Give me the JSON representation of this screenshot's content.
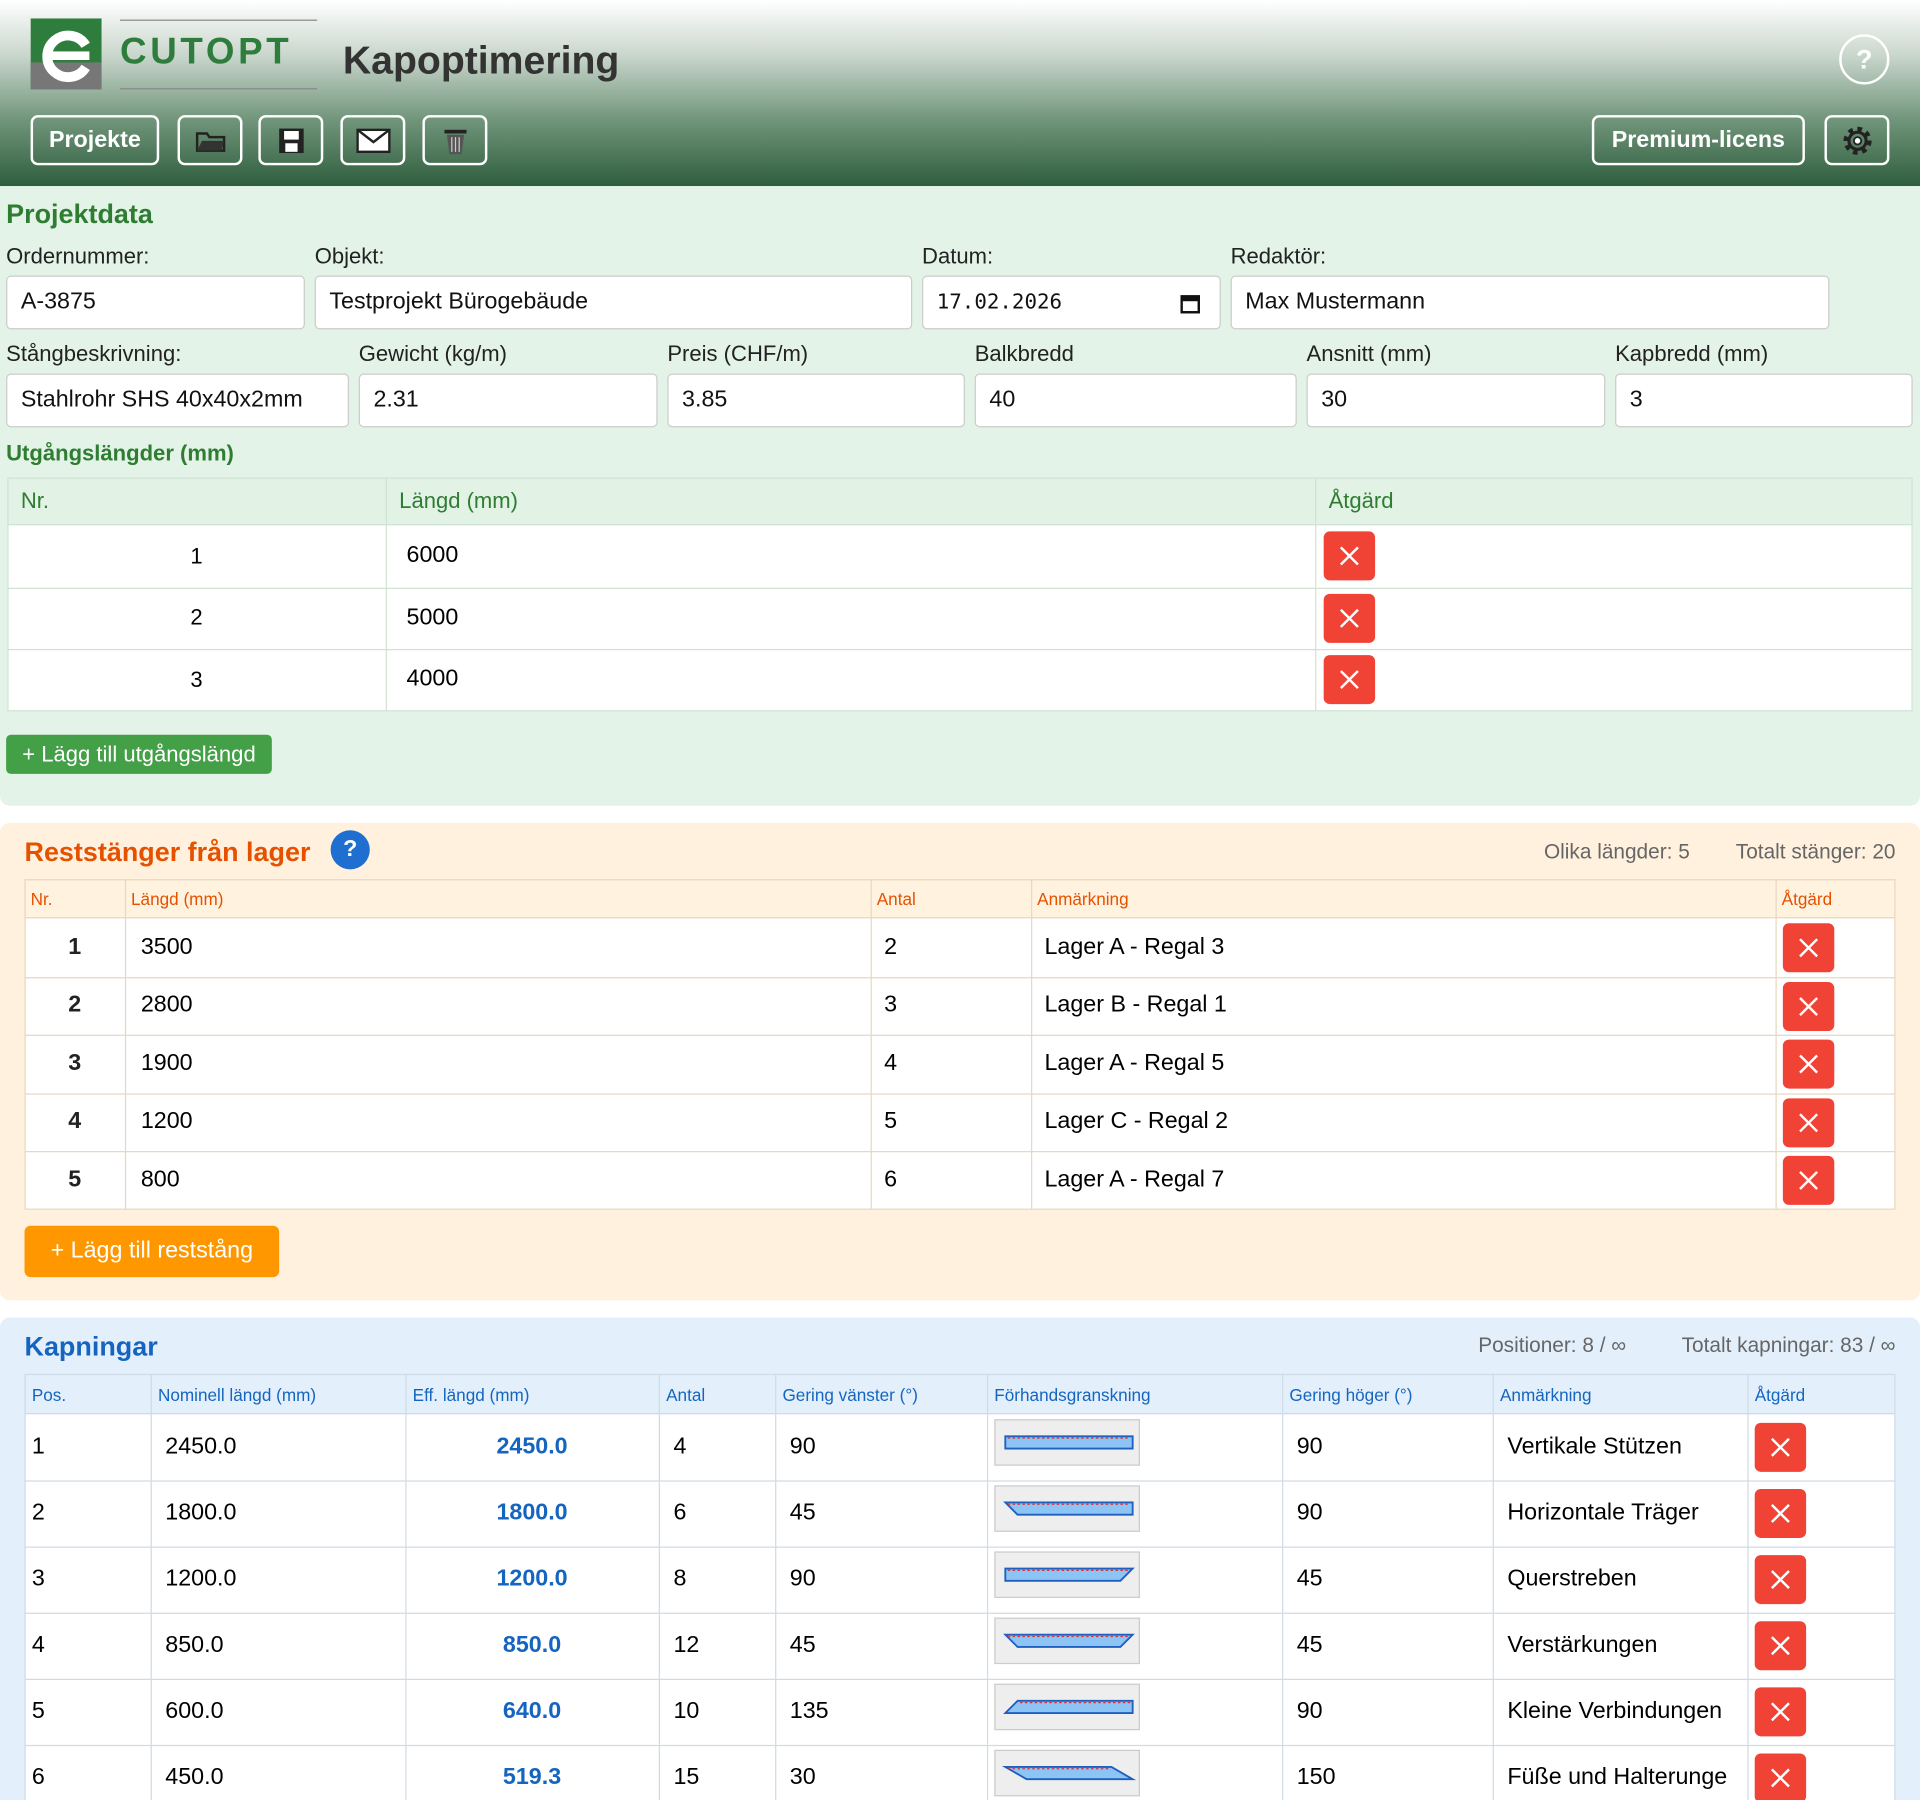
{
  "header": {
    "logo": "CUTOPT",
    "title": "Kapoptimering",
    "help": "?",
    "buttons": [
      "Projekte",
      "Premium-licens"
    ]
  },
  "project": {
    "heading": "Projektdata",
    "fields": [
      {
        "label": "Ordernummer:",
        "value": "A-3875"
      },
      {
        "label": "Objekt:",
        "value": "Testprojekt Bürogebäude"
      },
      {
        "label": "Datum:",
        "value": "17.02.2026"
      },
      {
        "label": "Redaktör:",
        "value": "Max Mustermann"
      },
      {
        "label": "Stångbeskrivning:",
        "value": "Stahlrohr SHS 40x40x2mm"
      },
      {
        "label": "Gewicht (kg/m)",
        "value": 2.31
      },
      {
        "label": "Preis (CHF/m)",
        "value": 3.85
      },
      {
        "label": "Balkbredd",
        "value": 40
      },
      {
        "label": "Ansnitt (mm)",
        "value": 30
      },
      {
        "label": "Kapbredd (mm)",
        "value": 3
      }
    ],
    "lengths": {
      "heading": "Utgångslängder (mm)",
      "columns": [
        "Nr.",
        "Längd (mm)",
        "Åtgärd"
      ],
      "rows": [
        [
          1,
          6000
        ],
        [
          2,
          5000
        ],
        [
          3,
          4000
        ]
      ],
      "add": "+ Lägg till utgångslängd"
    }
  },
  "stock": {
    "heading": "Reststänger från lager",
    "help": "?",
    "stats": [
      "Olika längder: 5",
      "Totalt stänger: 20"
    ],
    "columns": [
      "Nr.",
      "Längd (mm)",
      "Antal",
      "Anmärkning",
      "Åtgärd"
    ],
    "rows": [
      [
        1,
        3500,
        2,
        "Lager A - Regal 3"
      ],
      [
        2,
        2800,
        3,
        "Lager B - Regal 1"
      ],
      [
        3,
        1900,
        4,
        "Lager A - Regal 5"
      ],
      [
        4,
        1200,
        5,
        "Lager C - Regal 2"
      ],
      [
        5,
        800,
        6,
        "Lager A - Regal 7"
      ]
    ],
    "add": "+ Lägg till reststång"
  },
  "cuts": {
    "heading": "Kapningar",
    "stats": [
      "Positioner: 8 / ∞",
      "Totalt kapningar: 83 / ∞"
    ],
    "columns": [
      "Pos.",
      "Nominell längd (mm)",
      "Eff. längd (mm)",
      "Antal",
      "Gering vänster (°)",
      "Förhandsgranskning",
      "Gering höger (°)",
      "Anmärkning",
      "Åtgärd"
    ],
    "rows": [
      [
        1,
        "2450.0",
        "2450.0",
        4,
        90,
        90,
        "Vertikale Stützen"
      ],
      [
        2,
        "1800.0",
        "1800.0",
        6,
        45,
        90,
        "Horizontale Träger"
      ],
      [
        3,
        "1200.0",
        "1200.0",
        8,
        90,
        45,
        "Querstreben"
      ],
      [
        4,
        "850.0",
        "850.0",
        12,
        45,
        45,
        "Verstärkungen"
      ],
      [
        5,
        "600.0",
        "640.0",
        10,
        135,
        90,
        "Kleine Verbindungen"
      ],
      [
        6,
        "450.0",
        "519.3",
        15,
        30,
        150,
        "Füße und Halterunge"
      ]
    ]
  }
}
